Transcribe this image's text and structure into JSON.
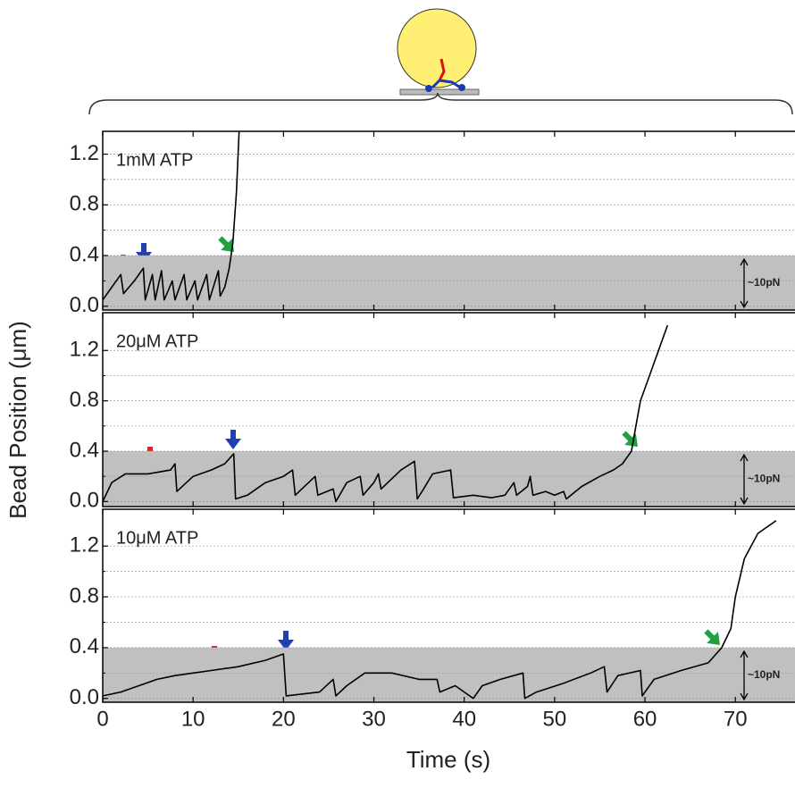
{
  "axis_labels": {
    "x": "Time (s)",
    "y": "Bead Position (μm)"
  },
  "chart_data": [
    {
      "type": "line",
      "annotation": "1mM ATP",
      "force_label": "~10pN",
      "band_top": 0.4,
      "band_color": "#c0c0c0",
      "color": "#000000",
      "xlim": [
        0,
        76.6
      ],
      "ylim": [
        -0.03,
        1.38
      ],
      "xticks": [
        0,
        10,
        20,
        30,
        40,
        50,
        60,
        70
      ],
      "xtick_labels": false,
      "yticks": [
        {
          "value": 0,
          "label": "0.0"
        },
        0.4,
        0.8,
        1.2
      ],
      "minor_yticks": [
        0.2,
        0.6,
        1.0
      ],
      "grid": true,
      "x": [
        0,
        1,
        2,
        2.3,
        3.5,
        4.5,
        4.7,
        5.5,
        5.8,
        6.5,
        6.8,
        7.7,
        8,
        9,
        9.3,
        10.2,
        10.5,
        11.5,
        11.8,
        12.8,
        13,
        13.5,
        14,
        14.4,
        14.8,
        15.1
      ],
      "values": [
        0.05,
        0.15,
        0.25,
        0.1,
        0.2,
        0.3,
        0.05,
        0.25,
        0.05,
        0.28,
        0.05,
        0.2,
        0.05,
        0.25,
        0.05,
        0.2,
        0.05,
        0.25,
        0.05,
        0.28,
        0.08,
        0.15,
        0.3,
        0.5,
        0.9,
        1.4
      ]
    },
    {
      "type": "line",
      "annotation": "20μM ATP",
      "force_label": "~10pN",
      "band_top": 0.4,
      "band_color": "#c0c0c0",
      "color": "#000000",
      "xlim": [
        0,
        76.6
      ],
      "ylim": [
        -0.04,
        1.5
      ],
      "xticks": [
        0,
        10,
        20,
        30,
        40,
        50,
        60,
        70
      ],
      "xtick_labels": false,
      "yticks": [
        {
          "value": 0,
          "label": "0.0"
        },
        0.4,
        0.8,
        1.2
      ],
      "minor_yticks": [
        0.2,
        0.6,
        1.0
      ],
      "grid": true,
      "x": [
        0,
        1,
        2.5,
        5,
        7.5,
        8,
        8.2,
        10,
        12,
        13.5,
        14.5,
        14.7,
        16,
        18,
        20,
        21,
        21.3,
        23.5,
        23.8,
        25.5,
        25.8,
        27,
        28.5,
        28.8,
        30,
        30.5,
        30.8,
        33,
        34.5,
        34.8,
        35.5,
        36.5,
        38.5,
        38.8,
        41,
        43,
        44.5,
        45.5,
        45.8,
        47,
        47.3,
        47.6,
        49,
        50,
        51,
        51.3,
        53,
        55,
        56.5,
        57.5,
        58.5,
        59,
        59.5,
        60.5,
        61.5,
        62.5
      ],
      "values": [
        0.0,
        0.15,
        0.22,
        0.22,
        0.25,
        0.3,
        0.08,
        0.2,
        0.25,
        0.3,
        0.38,
        0.02,
        0.05,
        0.15,
        0.2,
        0.25,
        0.05,
        0.2,
        0.05,
        0.1,
        0.0,
        0.15,
        0.2,
        0.05,
        0.15,
        0.22,
        0.1,
        0.25,
        0.32,
        0.02,
        0.1,
        0.22,
        0.25,
        0.03,
        0.05,
        0.03,
        0.05,
        0.15,
        0.05,
        0.12,
        0.2,
        0.05,
        0.08,
        0.05,
        0.08,
        0.02,
        0.12,
        0.2,
        0.25,
        0.3,
        0.4,
        0.6,
        0.8,
        1.0,
        1.2,
        1.4
      ]
    },
    {
      "type": "line",
      "annotation": "10μM ATP",
      "force_label": "~10pN",
      "band_top": 0.4,
      "band_color": "#c0c0c0",
      "color": "#000000",
      "xlim": [
        0,
        76.6
      ],
      "ylim": [
        -0.03,
        1.49
      ],
      "xticks": [
        0,
        10,
        20,
        30,
        40,
        50,
        60,
        70
      ],
      "xtick_labels": true,
      "yticks": [
        {
          "value": 0,
          "label": "0.0"
        },
        0.4,
        0.8,
        1.2
      ],
      "minor_yticks": [
        0.2,
        0.6,
        1.0
      ],
      "grid": true,
      "x": [
        0,
        2,
        4,
        6,
        8,
        10,
        12,
        15,
        18,
        20,
        20.3,
        24,
        25.5,
        25.8,
        27,
        29,
        32,
        35,
        37,
        37.3,
        39,
        40,
        41,
        42,
        44,
        46.5,
        46.7,
        48,
        51,
        54,
        55.5,
        55.8,
        57,
        59.5,
        59.7,
        61,
        64,
        67,
        68.5,
        69.5,
        70,
        71,
        72.5,
        74.5
      ],
      "values": [
        0.02,
        0.05,
        0.1,
        0.15,
        0.18,
        0.2,
        0.22,
        0.25,
        0.3,
        0.35,
        0.02,
        0.05,
        0.15,
        0.02,
        0.1,
        0.2,
        0.2,
        0.15,
        0.15,
        0.05,
        0.1,
        0.05,
        0.0,
        0.1,
        0.15,
        0.2,
        0.0,
        0.05,
        0.12,
        0.2,
        0.25,
        0.05,
        0.18,
        0.22,
        0.02,
        0.15,
        0.22,
        0.28,
        0.4,
        0.55,
        0.8,
        1.1,
        1.3,
        1.4
      ]
    }
  ]
}
